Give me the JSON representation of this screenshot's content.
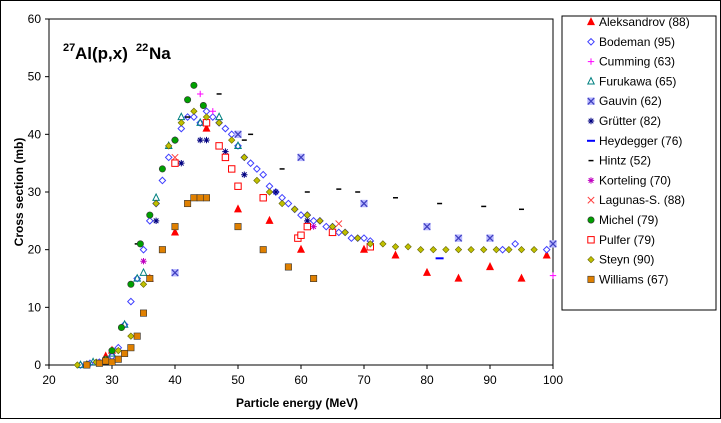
{
  "chart_data": {
    "type": "scatter",
    "title_parts": {
      "mass_a": "27",
      "elem_a": "Al(p,x)",
      "mass_b": "22",
      "elem_b": "Na"
    },
    "xlabel": "Particle energy (MeV)",
    "ylabel": "Cross section (mb)",
    "xlim": [
      20,
      100
    ],
    "ylim": [
      0,
      60
    ],
    "xticks": [
      "20",
      "30",
      "40",
      "50",
      "60",
      "70",
      "80",
      "90",
      "100"
    ],
    "yticks": [
      "0",
      "10",
      "20",
      "30",
      "40",
      "50",
      "60"
    ],
    "legend_position": "right",
    "series": [
      {
        "name": "Aleksandrov (88)",
        "marker": "triangle",
        "color": "#ff0000",
        "fill": true,
        "x": [
          29,
          30,
          36,
          40,
          45,
          50,
          55,
          60,
          65,
          70,
          75,
          80,
          85,
          90,
          95,
          99
        ],
        "y": [
          1.5,
          2.5,
          15,
          23,
          41,
          27,
          25,
          20,
          23,
          20,
          19,
          16,
          15,
          17,
          15,
          19
        ]
      },
      {
        "name": "Bodeman (95)",
        "marker": "diamond",
        "color": "#4040ff",
        "fill": false,
        "x": [
          25,
          26.5,
          28,
          29,
          30,
          31,
          32,
          33,
          34,
          35,
          36,
          37,
          38,
          39,
          40,
          41,
          42,
          43,
          44,
          45,
          46,
          47,
          48,
          49,
          50,
          51,
          52,
          53,
          54,
          55,
          56,
          57,
          58,
          59,
          60,
          61,
          62,
          63,
          64,
          65,
          66,
          67,
          68,
          69,
          70,
          71,
          92,
          94,
          99
        ],
        "y": [
          0,
          0.3,
          0.5,
          0.8,
          1.5,
          3,
          7,
          11,
          15,
          20,
          25,
          28,
          32,
          36,
          39,
          41,
          43,
          43,
          42,
          44,
          43,
          42,
          41,
          40,
          38,
          36,
          35,
          34,
          33,
          31,
          30,
          29,
          28,
          27,
          26,
          26,
          25,
          25,
          24,
          24,
          23,
          23,
          22,
          22,
          22,
          21.5,
          20,
          21,
          20
        ]
      },
      {
        "name": "Cumming (63)",
        "marker": "plus",
        "color": "#ff00ff",
        "fill": false,
        "x": [
          44,
          46,
          100
        ],
        "y": [
          47,
          44,
          15.5
        ]
      },
      {
        "name": "Furukawa (65)",
        "marker": "triangle",
        "color": "#008080",
        "fill": false,
        "x": [
          25,
          27,
          30,
          32,
          34,
          35,
          37,
          39,
          41,
          44,
          47,
          50
        ],
        "y": [
          0,
          0.5,
          2,
          7,
          15,
          16,
          29,
          38,
          43,
          42,
          43,
          38
        ]
      },
      {
        "name": "Gauvin (62)",
        "marker": "xsquare",
        "color": "#8080ff",
        "fill": true,
        "x": [
          40,
          50,
          60,
          70,
          80,
          85,
          90,
          100
        ],
        "y": [
          16,
          40,
          36,
          28,
          24,
          22,
          22,
          21
        ]
      },
      {
        "name": "Grütter (82)",
        "marker": "asterisk",
        "color": "#000080",
        "fill": false,
        "x": [
          37,
          41,
          44,
          45,
          48,
          51,
          56,
          61,
          71
        ],
        "y": [
          25,
          35,
          39,
          39,
          37,
          33,
          30,
          25,
          21
        ]
      },
      {
        "name": "Heydegger (76)",
        "marker": "hbar",
        "color": "#0000ff",
        "fill": false,
        "x": [
          82
        ],
        "y": [
          18.5
        ]
      },
      {
        "name": "Hintz (52)",
        "marker": "shortbar",
        "color": "#000000",
        "fill": false,
        "x": [
          34,
          42,
          47,
          51,
          52,
          57,
          61,
          66,
          69,
          75,
          82,
          89,
          95
        ],
        "y": [
          21,
          43,
          47,
          39,
          40,
          34,
          30,
          30.5,
          30,
          29,
          28,
          27.5,
          27
        ]
      },
      {
        "name": "Korteling (70)",
        "marker": "asterisk",
        "color": "#c000c0",
        "fill": false,
        "x": [
          35,
          62
        ],
        "y": [
          18,
          24
        ]
      },
      {
        "name": "Lagunas-S. (88)",
        "marker": "x",
        "color": "#ff4040",
        "fill": false,
        "x": [
          40,
          66
        ],
        "y": [
          36,
          24.5
        ]
      },
      {
        "name": "Michel (79)",
        "marker": "circle",
        "color": "#00a000",
        "fill": true,
        "x": [
          26,
          29,
          30,
          31.5,
          33,
          34.5,
          36,
          38,
          40,
          42,
          43,
          44.5
        ],
        "y": [
          0,
          1,
          2.5,
          6.5,
          14,
          21,
          26,
          34,
          39,
          46,
          48.5,
          45
        ]
      },
      {
        "name": "Pulfer (79)",
        "marker": "square",
        "color": "#ff0000",
        "fill": false,
        "x": [
          40,
          45,
          47,
          48,
          49,
          50,
          54,
          59.5,
          60,
          61,
          65,
          71
        ],
        "y": [
          35,
          42,
          38,
          36,
          34,
          31,
          29,
          22,
          22.5,
          24,
          23,
          20.5
        ]
      },
      {
        "name": "Steyn (90)",
        "marker": "diamond",
        "color": "#c0c000",
        "fill": true,
        "x": [
          24.5,
          26,
          27.5,
          29,
          31,
          33,
          35,
          37,
          39,
          41,
          43,
          45,
          47,
          49,
          51,
          53,
          55,
          57,
          59,
          61,
          63,
          65,
          67,
          69,
          71,
          73,
          75,
          77,
          79,
          81,
          83,
          85,
          87,
          89,
          91,
          93,
          95,
          97
        ],
        "y": [
          0,
          0.2,
          0.5,
          1,
          2.5,
          5,
          14,
          28,
          38,
          42,
          44,
          43,
          42,
          39,
          36,
          32,
          30,
          28,
          27,
          26,
          25,
          24,
          23,
          22,
          21,
          21,
          20.5,
          20.5,
          20,
          20,
          20,
          20,
          20,
          20,
          20,
          20,
          20,
          20
        ]
      },
      {
        "name": "Williams (67)",
        "marker": "square",
        "color": "#e08000",
        "fill": true,
        "x": [
          26,
          28,
          29,
          30,
          31,
          32,
          33,
          34,
          35,
          36,
          38,
          40,
          42,
          43,
          44,
          45,
          50,
          54,
          58,
          62
        ],
        "y": [
          0,
          0.3,
          0.7,
          0.5,
          1,
          2,
          3,
          5,
          9,
          15,
          20,
          24,
          28,
          29,
          29,
          29,
          24,
          20,
          17,
          15
        ]
      }
    ]
  }
}
